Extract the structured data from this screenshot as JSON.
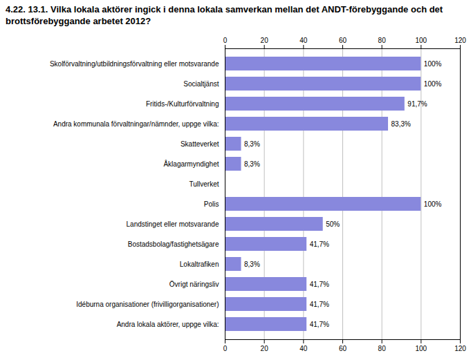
{
  "chart_data": {
    "type": "bar",
    "orientation": "horizontal",
    "title": "4.22. 13.1. Vilka lokala aktörer ingick i denna lokala samverkan mellan det ANDT-förebyggande och det brottsförebyggande arbetet 2012?",
    "categories": [
      "Skolförvaltning/utbildningsförvaltning eller motsvarande",
      "Socialtjänst",
      "Fritids-/Kulturförvaltning",
      "Andra kommunala förvaltningar/nämnder, uppge vilka:",
      "Skatteverket",
      "Åklagarmyndighet",
      "Tullverket",
      "Polis",
      "Landstinget eller motsvarande",
      "Bostadsbolag/fastighetsägare",
      "Lokaltrafiken",
      "Övrigt näringsliv",
      "Idéburna organisationer (frivilligorganisationer)",
      "Andra lokala aktörer, uppge vilka:"
    ],
    "values": [
      100,
      100,
      91.7,
      83.3,
      8.3,
      8.3,
      0,
      100,
      50,
      41.7,
      8.3,
      41.7,
      41.7,
      41.7
    ],
    "value_labels": [
      "100%",
      "100%",
      "91,7%",
      "83,3%",
      "8,3%",
      "8,3%",
      null,
      "100%",
      "50%",
      "41,7%",
      "8,3%",
      "41,7%",
      "41,7%",
      "41,7%"
    ],
    "data_labels": true,
    "color": "#8888dd",
    "xlim": [
      0,
      120
    ],
    "xticks": [
      0,
      20,
      40,
      60,
      80,
      100,
      120
    ],
    "grid": true
  }
}
